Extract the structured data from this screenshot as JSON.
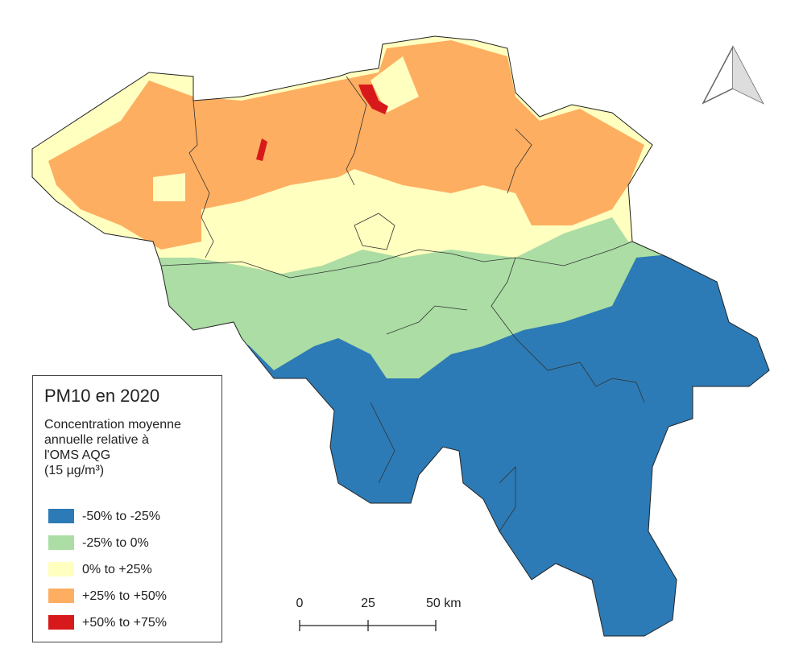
{
  "legend": {
    "title": "PM10 en 2020",
    "subtitle": [
      "Concentration moyenne",
      "annuelle relative à",
      "l'OMS AQG",
      "(15 µg/m³)"
    ],
    "items": [
      {
        "label": "-50% to -25%",
        "color": "#2c7bb6"
      },
      {
        "label": "-25% to 0%",
        "color": "#abdda4"
      },
      {
        "label": "0% to +25%",
        "color": "#ffffbf"
      },
      {
        "label": "+25% to +50%",
        "color": "#fdae61"
      },
      {
        "label": "+50% to +75%",
        "color": "#d7191c"
      }
    ]
  },
  "scale_bar": {
    "labels": [
      "0",
      "25",
      "50 km"
    ]
  }
}
